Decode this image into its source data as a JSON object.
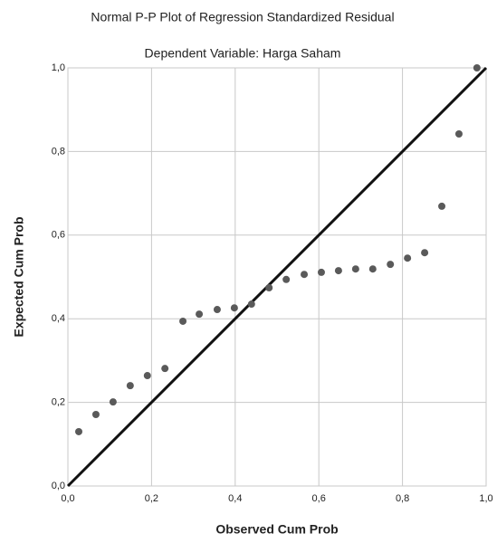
{
  "chart_data": {
    "type": "scatter",
    "title": "Normal P-P Plot of Regression Standardized Residual",
    "subtitle": "Dependent Variable: Harga Saham",
    "x_label": "Observed Cum Prob",
    "y_label": "Expected Cum Prob",
    "x": [
      0.026,
      0.067,
      0.108,
      0.149,
      0.19,
      0.232,
      0.275,
      0.314,
      0.357,
      0.398,
      0.439,
      0.481,
      0.522,
      0.565,
      0.606,
      0.647,
      0.688,
      0.729,
      0.771,
      0.812,
      0.853,
      0.894,
      0.935,
      0.978
    ],
    "y": [
      0.13,
      0.171,
      0.201,
      0.24,
      0.264,
      0.281,
      0.394,
      0.411,
      0.422,
      0.426,
      0.435,
      0.474,
      0.494,
      0.506,
      0.511,
      0.515,
      0.519,
      0.519,
      0.53,
      0.545,
      0.558,
      0.669,
      0.842,
      1.0
    ],
    "color": "#5a5a5a",
    "xlim": [
      0,
      1
    ],
    "ylim": [
      0,
      1
    ],
    "xticks": [
      {
        "value": 0,
        "label": "0,0"
      },
      {
        "value": 0.2,
        "label": "0,2"
      },
      {
        "value": 0.4,
        "label": "0,4"
      },
      {
        "value": 0.6,
        "label": "0,6"
      },
      {
        "value": 0.8,
        "label": "0,8"
      },
      {
        "value": 1,
        "label": "1,0"
      }
    ],
    "yticks": [
      {
        "value": 0,
        "label": "0,0"
      },
      {
        "value": 0.2,
        "label": "0,2"
      },
      {
        "value": 0.4,
        "label": "0,4"
      },
      {
        "value": 0.6,
        "label": "0,6"
      },
      {
        "value": 0.8,
        "label": "0,8"
      },
      {
        "value": 1,
        "label": "1,0"
      }
    ],
    "grid": true
  }
}
